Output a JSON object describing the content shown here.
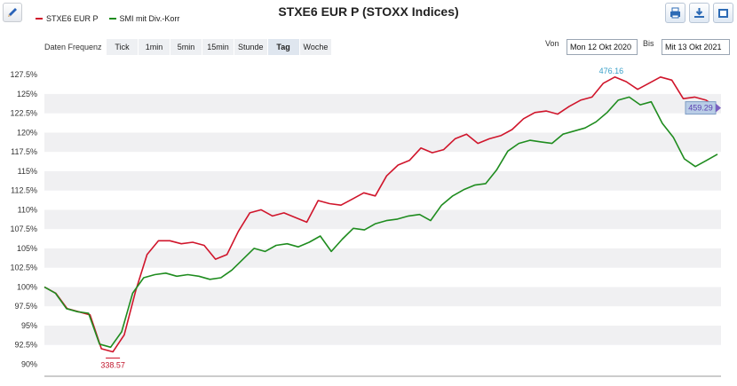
{
  "title": "STXE6 EUR P (STOXX Indices)",
  "legend": [
    {
      "label": "STXE6 EUR P",
      "color": "#d0152b"
    },
    {
      "label": "SMI mit Div.-Korr",
      "color": "#1f8c1f"
    }
  ],
  "frequency": {
    "label": "Daten Frequenz",
    "options": [
      "Tick",
      "1min",
      "5min",
      "15min",
      "Stunde",
      "Tag",
      "Woche"
    ],
    "selected": "Tag"
  },
  "date_range": {
    "from_label": "Von",
    "from_value": "Mon 12 Okt 2020",
    "to_label": "Bis",
    "to_value": "Mit 13 Okt 2021"
  },
  "toolbar": [
    "edit-icon",
    "print-icon",
    "download-icon",
    "export-icon"
  ],
  "chart_data": {
    "type": "line",
    "ylim": [
      90,
      128.5
    ],
    "y_ticks": [
      "127.5%",
      "125%",
      "122.5%",
      "120%",
      "117.5%",
      "115%",
      "112.5%",
      "110%",
      "107.5%",
      "105%",
      "102.5%",
      "100%",
      "97.5%",
      "95%",
      "92.5%",
      "90%"
    ],
    "annotations": {
      "high": "476.16",
      "low": "338.57",
      "last": "459.29"
    },
    "series": [
      {
        "name": "STXE6 EUR P",
        "color": "#d0152b",
        "values": [
          100.0,
          99.2,
          97.2,
          96.8,
          96.4,
          92.0,
          91.6,
          93.8,
          99.5,
          104.2,
          106.0,
          106.0,
          105.6,
          105.8,
          105.4,
          103.6,
          104.2,
          107.2,
          109.6,
          110.0,
          109.2,
          109.6,
          109.0,
          108.4,
          111.2,
          110.8,
          110.6,
          111.4,
          112.2,
          111.8,
          114.4,
          115.8,
          116.4,
          118.0,
          117.4,
          117.8,
          119.2,
          119.8,
          118.6,
          119.2,
          119.6,
          120.4,
          121.8,
          122.6,
          122.8,
          122.4,
          123.4,
          124.2,
          124.6,
          126.4,
          127.2,
          126.6,
          125.6,
          126.4,
          127.2,
          126.8,
          124.4,
          124.6,
          124.2,
          123.2
        ]
      },
      {
        "name": "SMI mit Div.-Korr",
        "color": "#1f8c1f",
        "values": [
          100.0,
          99.2,
          97.2,
          96.8,
          96.6,
          92.6,
          92.2,
          94.2,
          99.2,
          101.2,
          101.6,
          101.8,
          101.4,
          101.6,
          101.4,
          101.0,
          101.2,
          102.2,
          103.6,
          105.0,
          104.6,
          105.4,
          105.6,
          105.2,
          105.8,
          106.6,
          104.6,
          106.2,
          107.6,
          107.4,
          108.2,
          108.6,
          108.8,
          109.2,
          109.4,
          108.6,
          110.6,
          111.8,
          112.6,
          113.2,
          113.4,
          115.2,
          117.6,
          118.6,
          119.0,
          118.8,
          118.6,
          119.8,
          120.2,
          120.6,
          121.4,
          122.6,
          124.2,
          124.6,
          123.6,
          124.0,
          121.2,
          119.4,
          116.6,
          115.6,
          116.4,
          117.2
        ]
      }
    ]
  }
}
